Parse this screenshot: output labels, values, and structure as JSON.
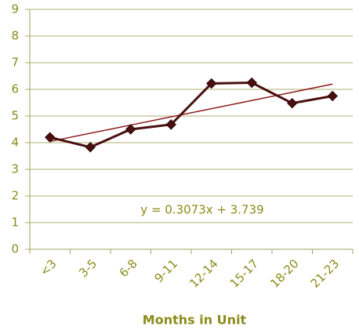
{
  "chart_data": {
    "type": "line",
    "x_label": "Months in Unit",
    "categories": [
      "<3",
      "3-5",
      "6-8",
      "9-11",
      "12-14",
      "15-17",
      "18-20",
      "21-23"
    ],
    "series": [
      {
        "color": "#4a0f0f",
        "values": [
          4.2,
          3.83,
          4.5,
          4.68,
          6.22,
          6.25,
          5.48,
          5.75
        ]
      }
    ],
    "trendline": {
      "label": "y = 0.3073x + 3.739",
      "slope": 0.3073,
      "intercept": 3.739,
      "color": "#8b1a1a"
    },
    "ylim": [
      0,
      9
    ],
    "yticks": [
      0,
      1,
      2,
      3,
      4,
      5,
      6,
      7,
      8,
      9
    ],
    "grid": true
  }
}
